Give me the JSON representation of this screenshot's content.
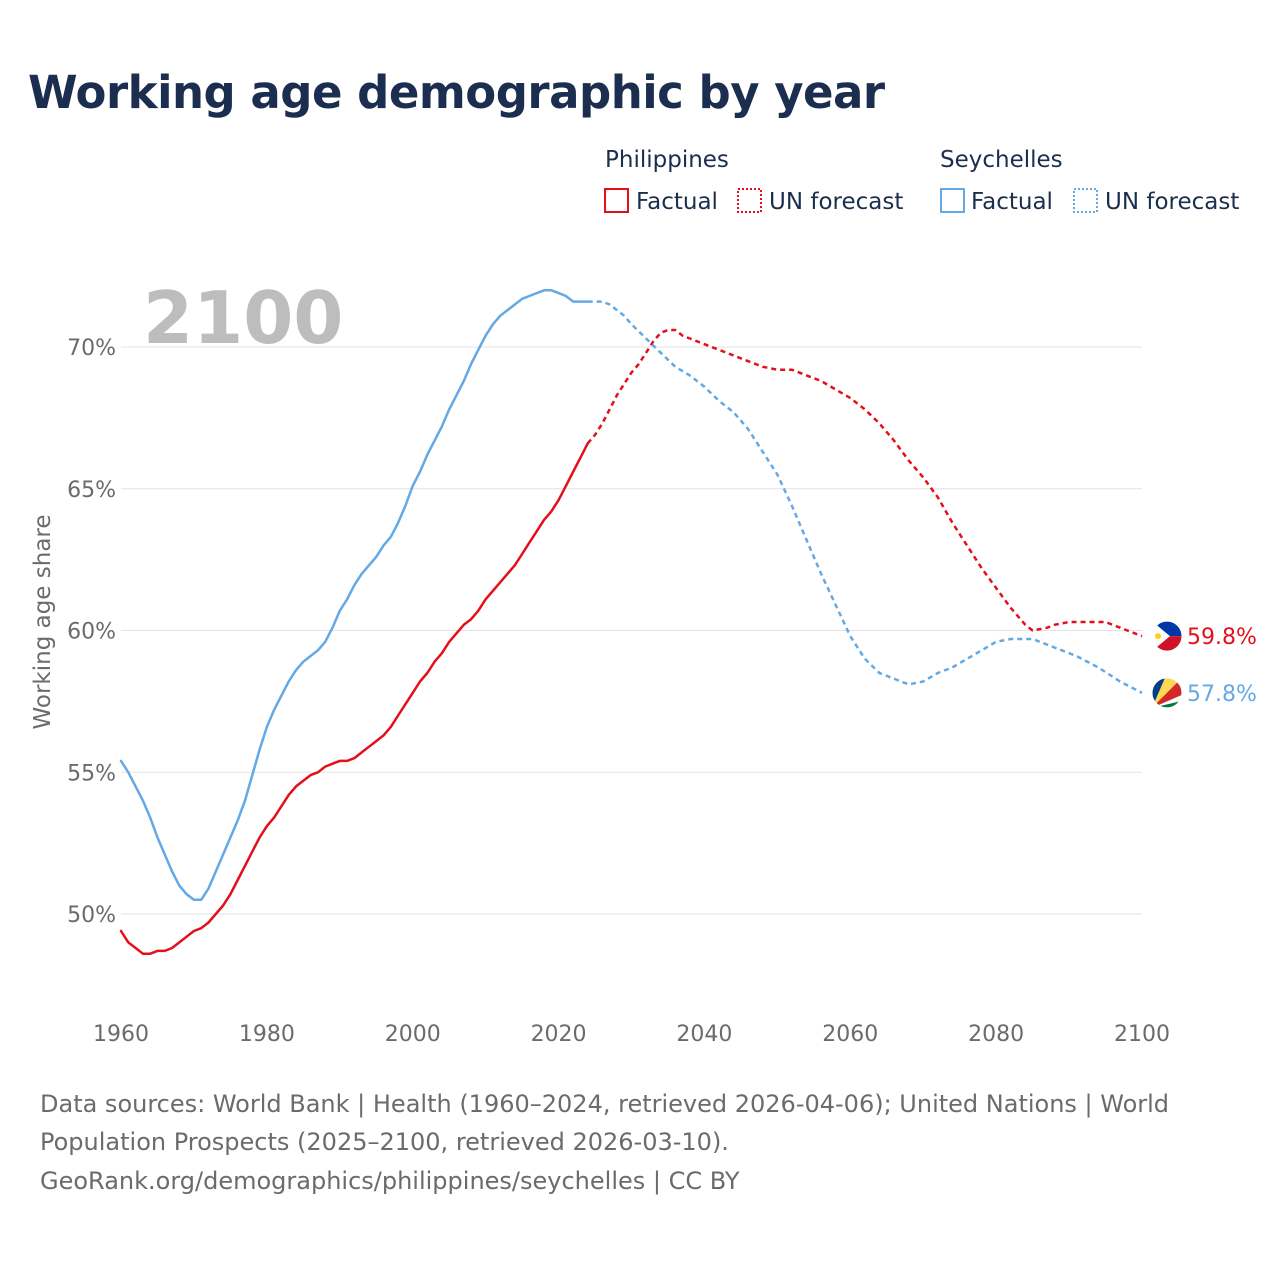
{
  "title": "Working age demographic by year",
  "year_label": "2100",
  "legend": {
    "groups": [
      {
        "name": "Philippines",
        "factual": "Factual",
        "forecast": "UN forecast",
        "color": "#e3101b"
      },
      {
        "name": "Seychelles",
        "factual": "Factual",
        "forecast": "UN forecast",
        "color": "#63a9e6"
      }
    ]
  },
  "sources": {
    "line1": "Data sources: World Bank | Health (1960–2024, retrieved 2026-04-06); United Nations | World",
    "line2": "Population Prospects (2025–2100, retrieved 2026-03-10).",
    "line3": "GeoRank.org/demographics/philippines/seychelles | CC BY"
  },
  "chart_data": {
    "type": "line",
    "title": "Working age demographic by year",
    "xlabel": "",
    "ylabel": "Working age share",
    "xlim": [
      1960,
      2100
    ],
    "ylim": [
      47.5,
      73
    ],
    "x_ticks": [
      1960,
      1980,
      2000,
      2020,
      2040,
      2060,
      2080,
      2100
    ],
    "y_ticks": [
      50,
      55,
      60,
      65,
      70
    ],
    "y_tick_labels": [
      "50%",
      "55%",
      "60%",
      "65%",
      "70%"
    ],
    "factual_end_year": 2024,
    "series": [
      {
        "name": "Philippines",
        "color": "#e3101b",
        "end_label": "59.8%",
        "points": [
          [
            1960,
            49.4
          ],
          [
            1961,
            49.0
          ],
          [
            1962,
            48.8
          ],
          [
            1963,
            48.6
          ],
          [
            1964,
            48.6
          ],
          [
            1965,
            48.7
          ],
          [
            1966,
            48.7
          ],
          [
            1967,
            48.8
          ],
          [
            1968,
            49.0
          ],
          [
            1969,
            49.2
          ],
          [
            1970,
            49.4
          ],
          [
            1971,
            49.5
          ],
          [
            1972,
            49.7
          ],
          [
            1973,
            50.0
          ],
          [
            1974,
            50.3
          ],
          [
            1975,
            50.7
          ],
          [
            1976,
            51.2
          ],
          [
            1977,
            51.7
          ],
          [
            1978,
            52.2
          ],
          [
            1979,
            52.7
          ],
          [
            1980,
            53.1
          ],
          [
            1981,
            53.4
          ],
          [
            1982,
            53.8
          ],
          [
            1983,
            54.2
          ],
          [
            1984,
            54.5
          ],
          [
            1985,
            54.7
          ],
          [
            1986,
            54.9
          ],
          [
            1987,
            55.0
          ],
          [
            1988,
            55.2
          ],
          [
            1989,
            55.3
          ],
          [
            1990,
            55.4
          ],
          [
            1991,
            55.4
          ],
          [
            1992,
            55.5
          ],
          [
            1993,
            55.7
          ],
          [
            1994,
            55.9
          ],
          [
            1995,
            56.1
          ],
          [
            1996,
            56.3
          ],
          [
            1997,
            56.6
          ],
          [
            1998,
            57.0
          ],
          [
            1999,
            57.4
          ],
          [
            2000,
            57.8
          ],
          [
            2001,
            58.2
          ],
          [
            2002,
            58.5
          ],
          [
            2003,
            58.9
          ],
          [
            2004,
            59.2
          ],
          [
            2005,
            59.6
          ],
          [
            2006,
            59.9
          ],
          [
            2007,
            60.2
          ],
          [
            2008,
            60.4
          ],
          [
            2009,
            60.7
          ],
          [
            2010,
            61.1
          ],
          [
            2011,
            61.4
          ],
          [
            2012,
            61.7
          ],
          [
            2013,
            62.0
          ],
          [
            2014,
            62.3
          ],
          [
            2015,
            62.7
          ],
          [
            2016,
            63.1
          ],
          [
            2017,
            63.5
          ],
          [
            2018,
            63.9
          ],
          [
            2019,
            64.2
          ],
          [
            2020,
            64.6
          ],
          [
            2021,
            65.1
          ],
          [
            2022,
            65.6
          ],
          [
            2023,
            66.1
          ],
          [
            2024,
            66.6
          ],
          [
            2025,
            66.9
          ],
          [
            2026,
            67.3
          ],
          [
            2027,
            67.8
          ],
          [
            2028,
            68.3
          ],
          [
            2029,
            68.7
          ],
          [
            2030,
            69.1
          ],
          [
            2031,
            69.4
          ],
          [
            2032,
            69.8
          ],
          [
            2033,
            70.2
          ],
          [
            2034,
            70.5
          ],
          [
            2035,
            70.6
          ],
          [
            2036,
            70.6
          ],
          [
            2037,
            70.4
          ],
          [
            2038,
            70.3
          ],
          [
            2039,
            70.2
          ],
          [
            2040,
            70.1
          ],
          [
            2042,
            69.9
          ],
          [
            2044,
            69.7
          ],
          [
            2046,
            69.5
          ],
          [
            2048,
            69.3
          ],
          [
            2050,
            69.2
          ],
          [
            2052,
            69.2
          ],
          [
            2054,
            69.0
          ],
          [
            2056,
            68.8
          ],
          [
            2058,
            68.5
          ],
          [
            2060,
            68.2
          ],
          [
            2062,
            67.8
          ],
          [
            2064,
            67.3
          ],
          [
            2066,
            66.7
          ],
          [
            2068,
            66.0
          ],
          [
            2070,
            65.4
          ],
          [
            2072,
            64.7
          ],
          [
            2074,
            63.8
          ],
          [
            2076,
            63.0
          ],
          [
            2078,
            62.2
          ],
          [
            2080,
            61.5
          ],
          [
            2082,
            60.8
          ],
          [
            2084,
            60.2
          ],
          [
            2085,
            60.0
          ],
          [
            2087,
            60.1
          ],
          [
            2088,
            60.2
          ],
          [
            2090,
            60.3
          ],
          [
            2092,
            60.3
          ],
          [
            2095,
            60.3
          ],
          [
            2098,
            60.0
          ],
          [
            2100,
            59.8
          ]
        ]
      },
      {
        "name": "Seychelles",
        "color": "#63a9e6",
        "end_label": "57.8%",
        "points": [
          [
            1960,
            55.4
          ],
          [
            1961,
            55.0
          ],
          [
            1962,
            54.5
          ],
          [
            1963,
            54.0
          ],
          [
            1964,
            53.4
          ],
          [
            1965,
            52.7
          ],
          [
            1966,
            52.1
          ],
          [
            1967,
            51.5
          ],
          [
            1968,
            51.0
          ],
          [
            1969,
            50.7
          ],
          [
            1970,
            50.5
          ],
          [
            1971,
            50.5
          ],
          [
            1972,
            50.9
          ],
          [
            1973,
            51.5
          ],
          [
            1974,
            52.1
          ],
          [
            1975,
            52.7
          ],
          [
            1976,
            53.3
          ],
          [
            1977,
            54.0
          ],
          [
            1978,
            54.9
          ],
          [
            1979,
            55.8
          ],
          [
            1980,
            56.6
          ],
          [
            1981,
            57.2
          ],
          [
            1982,
            57.7
          ],
          [
            1983,
            58.2
          ],
          [
            1984,
            58.6
          ],
          [
            1985,
            58.9
          ],
          [
            1986,
            59.1
          ],
          [
            1987,
            59.3
          ],
          [
            1988,
            59.6
          ],
          [
            1989,
            60.1
          ],
          [
            1990,
            60.7
          ],
          [
            1991,
            61.1
          ],
          [
            1992,
            61.6
          ],
          [
            1993,
            62.0
          ],
          [
            1994,
            62.3
          ],
          [
            1995,
            62.6
          ],
          [
            1996,
            63.0
          ],
          [
            1997,
            63.3
          ],
          [
            1998,
            63.8
          ],
          [
            1999,
            64.4
          ],
          [
            2000,
            65.1
          ],
          [
            2001,
            65.6
          ],
          [
            2002,
            66.2
          ],
          [
            2003,
            66.7
          ],
          [
            2004,
            67.2
          ],
          [
            2005,
            67.8
          ],
          [
            2006,
            68.3
          ],
          [
            2007,
            68.8
          ],
          [
            2008,
            69.4
          ],
          [
            2009,
            69.9
          ],
          [
            2010,
            70.4
          ],
          [
            2011,
            70.8
          ],
          [
            2012,
            71.1
          ],
          [
            2013,
            71.3
          ],
          [
            2014,
            71.5
          ],
          [
            2015,
            71.7
          ],
          [
            2016,
            71.8
          ],
          [
            2017,
            71.9
          ],
          [
            2018,
            72.0
          ],
          [
            2019,
            72.0
          ],
          [
            2020,
            71.9
          ],
          [
            2021,
            71.8
          ],
          [
            2022,
            71.6
          ],
          [
            2023,
            71.6
          ],
          [
            2024,
            71.6
          ],
          [
            2025,
            71.6
          ],
          [
            2026,
            71.6
          ],
          [
            2027,
            71.5
          ],
          [
            2028,
            71.3
          ],
          [
            2029,
            71.1
          ],
          [
            2030,
            70.8
          ],
          [
            2032,
            70.3
          ],
          [
            2034,
            69.8
          ],
          [
            2036,
            69.3
          ],
          [
            2038,
            69.0
          ],
          [
            2040,
            68.6
          ],
          [
            2042,
            68.1
          ],
          [
            2044,
            67.7
          ],
          [
            2046,
            67.1
          ],
          [
            2048,
            66.3
          ],
          [
            2050,
            65.5
          ],
          [
            2052,
            64.4
          ],
          [
            2054,
            63.2
          ],
          [
            2056,
            62.0
          ],
          [
            2058,
            60.9
          ],
          [
            2060,
            59.8
          ],
          [
            2062,
            59.0
          ],
          [
            2064,
            58.5
          ],
          [
            2066,
            58.3
          ],
          [
            2068,
            58.1
          ],
          [
            2070,
            58.2
          ],
          [
            2072,
            58.5
          ],
          [
            2074,
            58.7
          ],
          [
            2076,
            59.0
          ],
          [
            2078,
            59.3
          ],
          [
            2080,
            59.6
          ],
          [
            2082,
            59.7
          ],
          [
            2085,
            59.7
          ],
          [
            2088,
            59.4
          ],
          [
            2091,
            59.1
          ],
          [
            2094,
            58.7
          ],
          [
            2097,
            58.2
          ],
          [
            2100,
            57.8
          ]
        ]
      }
    ]
  }
}
